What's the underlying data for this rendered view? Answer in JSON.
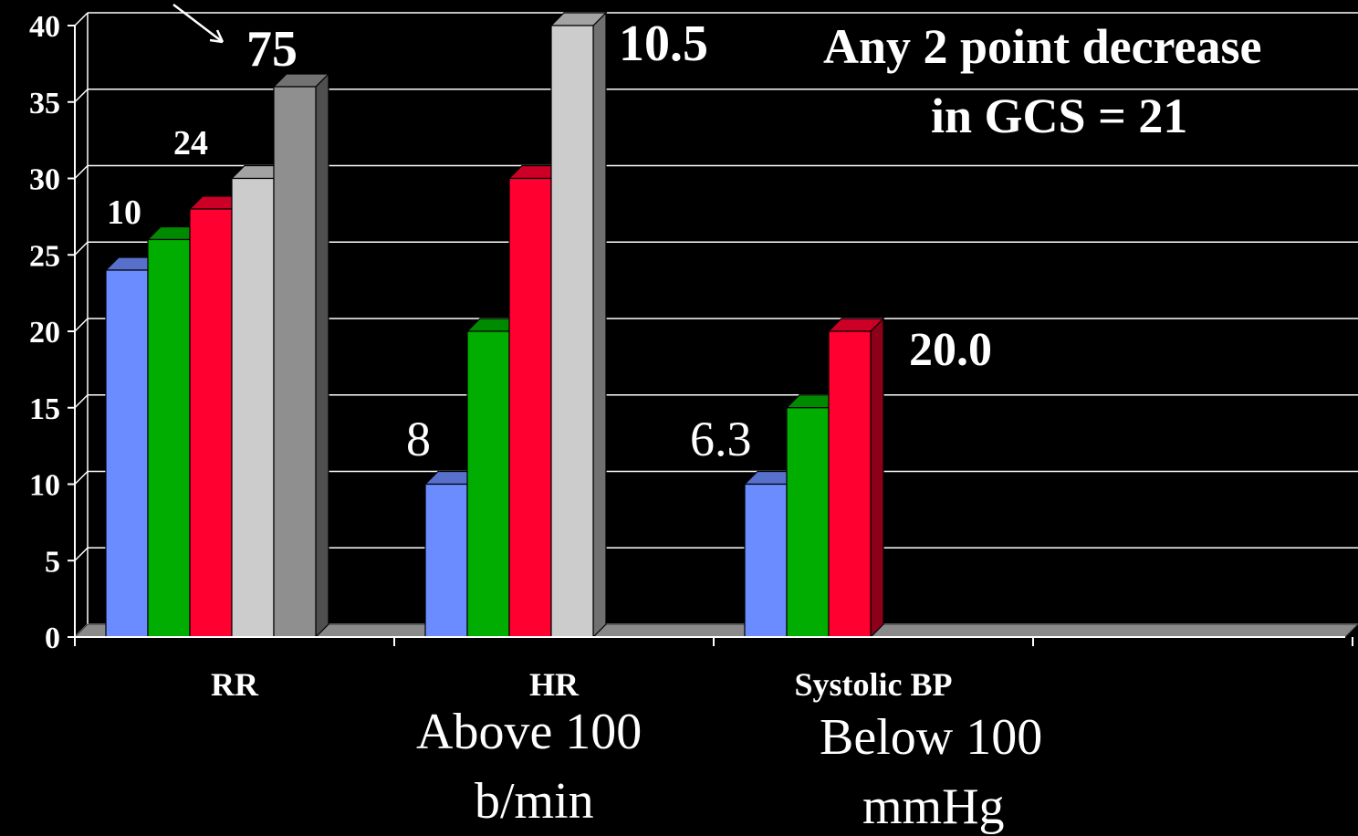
{
  "chart_data": {
    "type": "bar",
    "categories": [
      "RR",
      "HR",
      "Systolic BP",
      ""
    ],
    "series": [
      {
        "values": [
          24,
          10,
          10,
          null
        ],
        "color": "#6b8cff"
      },
      {
        "values": [
          26,
          20,
          15,
          null
        ],
        "color": "#00ad00"
      },
      {
        "values": [
          28,
          30,
          20,
          null
        ],
        "color": "#ff0030"
      },
      {
        "values": [
          30,
          40,
          null,
          null
        ],
        "color": "#cccccc"
      },
      {
        "values": [
          36,
          null,
          null,
          null
        ],
        "color": "#8f8f8f"
      }
    ],
    "ylim": [
      0,
      40
    ],
    "yticks": [
      0,
      5,
      10,
      15,
      20,
      25,
      30,
      35,
      40
    ],
    "grid": true,
    "background": "#000000"
  },
  "annotations": {
    "rr_a": "10",
    "rr_b": "24",
    "rr_c": "75",
    "hr_a": "8",
    "hr_b": "10.5",
    "bp_a": "6.3",
    "bp_b": "20.0",
    "gcs_line1": "Any 2 point decrease",
    "gcs_line2": "in GCS = 21",
    "hr_note_1": "Above 100",
    "hr_note_2": "b/min",
    "bp_note_1": "Below 100",
    "bp_note_2": "mmHg"
  }
}
